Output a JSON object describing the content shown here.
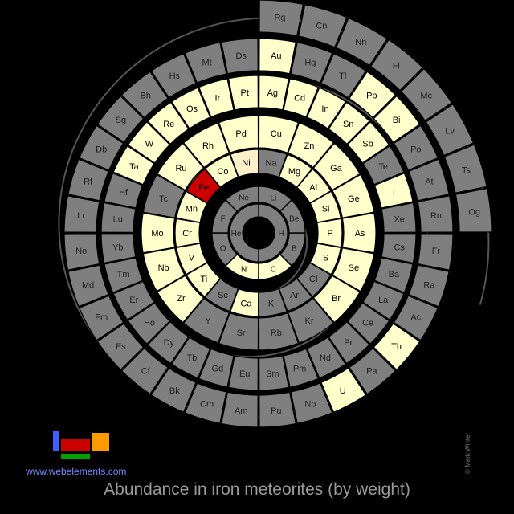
{
  "title": "Abundance in iron meteorites (by weight)",
  "website": "www.webelements.com",
  "copyright": "© Mark Winter",
  "colors": {
    "background": "#000000",
    "not_present": "#7f7f7f",
    "present": "#ffffcc",
    "medium": "#fff0cc",
    "highest": "#cc0000",
    "cell_border": "#000000",
    "text_dark": "#000000",
    "text_on_gray": "#202020",
    "spiral": "#555555"
  },
  "legend_icon": {
    "name": "periodic-table-mini-icon",
    "blocks": [
      {
        "name": "s-block",
        "color": "#3f5fff"
      },
      {
        "name": "d-block",
        "color": "#cc0000"
      },
      {
        "name": "p-block",
        "color": "#ff9900"
      },
      {
        "name": "f-block",
        "color": "#00a000"
      }
    ]
  },
  "elements": [
    {
      "symbol": "H",
      "level": "none"
    },
    {
      "symbol": "He",
      "level": "none"
    },
    {
      "symbol": "Li",
      "level": "none"
    },
    {
      "symbol": "Be",
      "level": "none"
    },
    {
      "symbol": "B",
      "level": "none"
    },
    {
      "symbol": "C",
      "level": "present"
    },
    {
      "symbol": "N",
      "level": "present"
    },
    {
      "symbol": "O",
      "level": "none"
    },
    {
      "symbol": "F",
      "level": "none"
    },
    {
      "symbol": "Ne",
      "level": "none"
    },
    {
      "symbol": "Na",
      "level": "none"
    },
    {
      "symbol": "Mg",
      "level": "present"
    },
    {
      "symbol": "Al",
      "level": "present"
    },
    {
      "symbol": "Si",
      "level": "present"
    },
    {
      "symbol": "P",
      "level": "present"
    },
    {
      "symbol": "S",
      "level": "present"
    },
    {
      "symbol": "Cl",
      "level": "none"
    },
    {
      "symbol": "Ar",
      "level": "none"
    },
    {
      "symbol": "K",
      "level": "none"
    },
    {
      "symbol": "Ca",
      "level": "present"
    },
    {
      "symbol": "Sc",
      "level": "none"
    },
    {
      "symbol": "Ti",
      "level": "present"
    },
    {
      "symbol": "V",
      "level": "present"
    },
    {
      "symbol": "Cr",
      "level": "present"
    },
    {
      "symbol": "Mn",
      "level": "present"
    },
    {
      "symbol": "Fe",
      "level": "highest"
    },
    {
      "symbol": "Co",
      "level": "present"
    },
    {
      "symbol": "Ni",
      "level": "medium"
    },
    {
      "symbol": "Cu",
      "level": "present"
    },
    {
      "symbol": "Zn",
      "level": "present"
    },
    {
      "symbol": "Ga",
      "level": "present"
    },
    {
      "symbol": "Ge",
      "level": "present"
    },
    {
      "symbol": "As",
      "level": "present"
    },
    {
      "symbol": "Se",
      "level": "present"
    },
    {
      "symbol": "Br",
      "level": "present"
    },
    {
      "symbol": "Kr",
      "level": "none"
    },
    {
      "symbol": "Rb",
      "level": "none"
    },
    {
      "symbol": "Sr",
      "level": "none"
    },
    {
      "symbol": "Y",
      "level": "none"
    },
    {
      "symbol": "Zr",
      "level": "present"
    },
    {
      "symbol": "Nb",
      "level": "present"
    },
    {
      "symbol": "Mo",
      "level": "present"
    },
    {
      "symbol": "Tc",
      "level": "none"
    },
    {
      "symbol": "Ru",
      "level": "present"
    },
    {
      "symbol": "Rh",
      "level": "present"
    },
    {
      "symbol": "Pd",
      "level": "present"
    },
    {
      "symbol": "Ag",
      "level": "present"
    },
    {
      "symbol": "Cd",
      "level": "present"
    },
    {
      "symbol": "In",
      "level": "present"
    },
    {
      "symbol": "Sn",
      "level": "present"
    },
    {
      "symbol": "Sb",
      "level": "present"
    },
    {
      "symbol": "Te",
      "level": "none"
    },
    {
      "symbol": "I",
      "level": "present"
    },
    {
      "symbol": "Xe",
      "level": "none"
    },
    {
      "symbol": "Cs",
      "level": "none"
    },
    {
      "symbol": "Ba",
      "level": "none"
    },
    {
      "symbol": "La",
      "level": "none"
    },
    {
      "symbol": "Ce",
      "level": "none"
    },
    {
      "symbol": "Pr",
      "level": "none"
    },
    {
      "symbol": "Nd",
      "level": "none"
    },
    {
      "symbol": "Pm",
      "level": "none"
    },
    {
      "symbol": "Sm",
      "level": "none"
    },
    {
      "symbol": "Eu",
      "level": "none"
    },
    {
      "symbol": "Gd",
      "level": "none"
    },
    {
      "symbol": "Tb",
      "level": "none"
    },
    {
      "symbol": "Dy",
      "level": "none"
    },
    {
      "symbol": "Ho",
      "level": "none"
    },
    {
      "symbol": "Er",
      "level": "none"
    },
    {
      "symbol": "Tm",
      "level": "none"
    },
    {
      "symbol": "Yb",
      "level": "none"
    },
    {
      "symbol": "Lu",
      "level": "none"
    },
    {
      "symbol": "Hf",
      "level": "none"
    },
    {
      "symbol": "Ta",
      "level": "present"
    },
    {
      "symbol": "W",
      "level": "present"
    },
    {
      "symbol": "Re",
      "level": "present"
    },
    {
      "symbol": "Os",
      "level": "present"
    },
    {
      "symbol": "Ir",
      "level": "present"
    },
    {
      "symbol": "Pt",
      "level": "present"
    },
    {
      "symbol": "Au",
      "level": "present"
    },
    {
      "symbol": "Hg",
      "level": "none"
    },
    {
      "symbol": "Tl",
      "level": "none"
    },
    {
      "symbol": "Pb",
      "level": "present"
    },
    {
      "symbol": "Bi",
      "level": "present"
    },
    {
      "symbol": "Po",
      "level": "none"
    },
    {
      "symbol": "At",
      "level": "none"
    },
    {
      "symbol": "Rn",
      "level": "none"
    },
    {
      "symbol": "Fr",
      "level": "none"
    },
    {
      "symbol": "Ra",
      "level": "none"
    },
    {
      "symbol": "Ac",
      "level": "none"
    },
    {
      "symbol": "Th",
      "level": "present"
    },
    {
      "symbol": "Pa",
      "level": "none"
    },
    {
      "symbol": "U",
      "level": "present"
    },
    {
      "symbol": "Np",
      "level": "none"
    },
    {
      "symbol": "Pu",
      "level": "none"
    },
    {
      "symbol": "Am",
      "level": "none"
    },
    {
      "symbol": "Cm",
      "level": "none"
    },
    {
      "symbol": "Bk",
      "level": "none"
    },
    {
      "symbol": "Cf",
      "level": "none"
    },
    {
      "symbol": "Es",
      "level": "none"
    },
    {
      "symbol": "Fm",
      "level": "none"
    },
    {
      "symbol": "Md",
      "level": "none"
    },
    {
      "symbol": "No",
      "level": "none"
    },
    {
      "symbol": "Lr",
      "level": "none"
    },
    {
      "symbol": "Rf",
      "level": "none"
    },
    {
      "symbol": "Db",
      "level": "none"
    },
    {
      "symbol": "Sg",
      "level": "none"
    },
    {
      "symbol": "Bh",
      "level": "none"
    },
    {
      "symbol": "Hs",
      "level": "none"
    },
    {
      "symbol": "Mt",
      "level": "none"
    },
    {
      "symbol": "Ds",
      "level": "none"
    },
    {
      "symbol": "Rg",
      "level": "none"
    },
    {
      "symbol": "Cn",
      "level": "none"
    },
    {
      "symbol": "Nh",
      "level": "none"
    },
    {
      "symbol": "Fl",
      "level": "none"
    },
    {
      "symbol": "Mc",
      "level": "none"
    },
    {
      "symbol": "Lv",
      "level": "none"
    },
    {
      "symbol": "Ts",
      "level": "none"
    },
    {
      "symbol": "Og",
      "level": "none"
    }
  ]
}
